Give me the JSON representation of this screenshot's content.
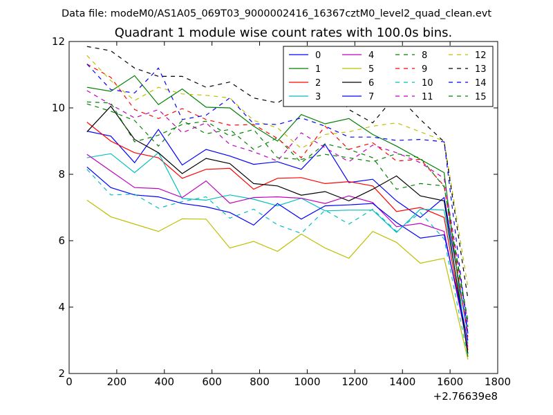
{
  "chart_data": {
    "type": "line",
    "suptitle": "Data file: modeM0/AS1A05_069T03_9000002416_16367cztM0_level2_quad_clean.evt",
    "title": "Quadrant 1 module wise count rates with 100.0s bins.",
    "xlabel": "",
    "ylabel": "",
    "x_offset_label": "+2.76639e8",
    "xlim": [
      0,
      1800
    ],
    "ylim": [
      2,
      12
    ],
    "xticks": [
      0,
      200,
      400,
      600,
      800,
      1000,
      1200,
      1400,
      1600,
      1800
    ],
    "yticks": [
      2,
      4,
      6,
      8,
      10,
      12
    ],
    "x": [
      75,
      175,
      275,
      375,
      475,
      575,
      675,
      775,
      875,
      975,
      1075,
      1175,
      1275,
      1375,
      1475,
      1575,
      1675
    ],
    "legend_position": "top-right",
    "legend_columns": 4,
    "series": [
      {
        "name": "0",
        "color": "#0000ff",
        "style": "solid",
        "values": [
          9.3,
          9.15,
          8.35,
          9.35,
          8.28,
          8.75,
          8.55,
          8.3,
          8.38,
          8.15,
          8.9,
          7.75,
          7.85,
          7.2,
          6.7,
          7.3,
          3.2
        ]
      },
      {
        "name": "1",
        "color": "#008000",
        "style": "solid",
        "values": [
          10.62,
          10.5,
          10.97,
          10.1,
          10.57,
          10.02,
          10.0,
          9.45,
          9.0,
          9.8,
          9.52,
          9.68,
          9.2,
          8.85,
          8.45,
          8.05,
          2.5
        ]
      },
      {
        "name": "2",
        "color": "#ff0000",
        "style": "solid",
        "values": [
          9.57,
          9.0,
          8.65,
          8.5,
          7.88,
          8.15,
          8.18,
          7.55,
          7.88,
          7.9,
          7.72,
          7.78,
          7.65,
          6.88,
          7.0,
          6.7,
          2.7
        ]
      },
      {
        "name": "3",
        "color": "#00bfbf",
        "style": "solid",
        "values": [
          8.5,
          8.62,
          8.05,
          8.65,
          7.27,
          7.22,
          7.38,
          7.25,
          7.05,
          7.28,
          6.9,
          6.92,
          6.92,
          6.25,
          6.95,
          6.92,
          2.9
        ]
      },
      {
        "name": "4",
        "color": "#bf00bf",
        "style": "solid",
        "values": [
          8.6,
          8.1,
          7.6,
          7.57,
          7.3,
          7.8,
          7.13,
          7.3,
          7.32,
          7.28,
          7.12,
          7.35,
          7.15,
          6.42,
          6.52,
          6.28,
          2.8
        ]
      },
      {
        "name": "5",
        "color": "#bfbf00",
        "style": "solid",
        "values": [
          7.22,
          6.72,
          6.5,
          6.28,
          6.66,
          6.65,
          5.78,
          5.98,
          5.68,
          6.2,
          5.78,
          5.47,
          6.28,
          5.95,
          5.32,
          5.47,
          2.42
        ]
      },
      {
        "name": "6",
        "color": "#000000",
        "style": "solid",
        "values": [
          9.28,
          10.05,
          9.05,
          8.65,
          8.02,
          8.48,
          8.32,
          7.72,
          7.65,
          7.37,
          7.48,
          7.2,
          7.55,
          7.95,
          7.35,
          7.2,
          2.6
        ]
      },
      {
        "name": "7",
        "color": "#0000ff",
        "style": "solid",
        "values": [
          8.22,
          7.6,
          7.38,
          7.32,
          7.12,
          7.02,
          6.85,
          6.47,
          7.12,
          6.65,
          7.05,
          7.08,
          7.12,
          6.55,
          6.08,
          6.18,
          3.0
        ]
      },
      {
        "name": "8",
        "color": "#008000",
        "style": "dashed",
        "values": [
          10.12,
          9.9,
          9.62,
          8.85,
          9.62,
          9.22,
          9.35,
          8.75,
          9.1,
          8.35,
          8.92,
          8.75,
          8.5,
          7.55,
          7.72,
          7.65,
          3.4
        ]
      },
      {
        "name": "9",
        "color": "#ff0000",
        "style": "dashed",
        "values": [
          11.32,
          10.92,
          9.95,
          9.68,
          9.98,
          9.65,
          9.48,
          9.5,
          9.08,
          8.5,
          9.45,
          8.75,
          8.95,
          8.4,
          8.45,
          7.65,
          3.1
        ]
      },
      {
        "name": "10",
        "color": "#00bfbf",
        "style": "dashed",
        "values": [
          8.15,
          7.38,
          7.4,
          6.98,
          7.18,
          7.32,
          6.68,
          6.95,
          6.48,
          6.22,
          6.92,
          6.5,
          6.95,
          6.28,
          6.85,
          6.05,
          2.5
        ]
      },
      {
        "name": "11",
        "color": "#bf00bf",
        "style": "dashed",
        "values": [
          10.52,
          10.1,
          9.7,
          9.95,
          9.25,
          9.55,
          8.9,
          8.68,
          8.4,
          9.25,
          8.8,
          8.38,
          8.88,
          8.65,
          8.35,
          7.88,
          3.5
        ]
      },
      {
        "name": "12",
        "color": "#bfbf00",
        "style": "dashed",
        "values": [
          11.58,
          10.82,
          10.22,
          10.62,
          10.42,
          10.38,
          10.3,
          9.62,
          9.4,
          8.78,
          9.2,
          9.28,
          9.45,
          9.55,
          9.28,
          9.0,
          4.6
        ]
      },
      {
        "name": "13",
        "color": "#000000",
        "style": "dashed",
        "values": [
          11.85,
          11.72,
          11.2,
          10.95,
          10.95,
          10.62,
          10.78,
          10.3,
          10.15,
          10.6,
          10.85,
          9.95,
          9.55,
          10.4,
          9.65,
          8.98,
          4.25
        ]
      },
      {
        "name": "14",
        "color": "#0000ff",
        "style": "dashed",
        "values": [
          11.32,
          10.55,
          10.45,
          11.2,
          9.65,
          9.78,
          10.3,
          9.52,
          9.5,
          9.7,
          9.45,
          9.12,
          9.12,
          9.02,
          9.05,
          8.98,
          3.2
        ]
      },
      {
        "name": "15",
        "color": "#008000",
        "style": "dashed",
        "values": [
          10.18,
          10.15,
          8.98,
          9.18,
          9.5,
          9.6,
          9.15,
          9.35,
          8.5,
          8.45,
          8.6,
          8.5,
          8.38,
          8.62,
          8.5,
          7.62,
          3.6
        ]
      }
    ]
  }
}
